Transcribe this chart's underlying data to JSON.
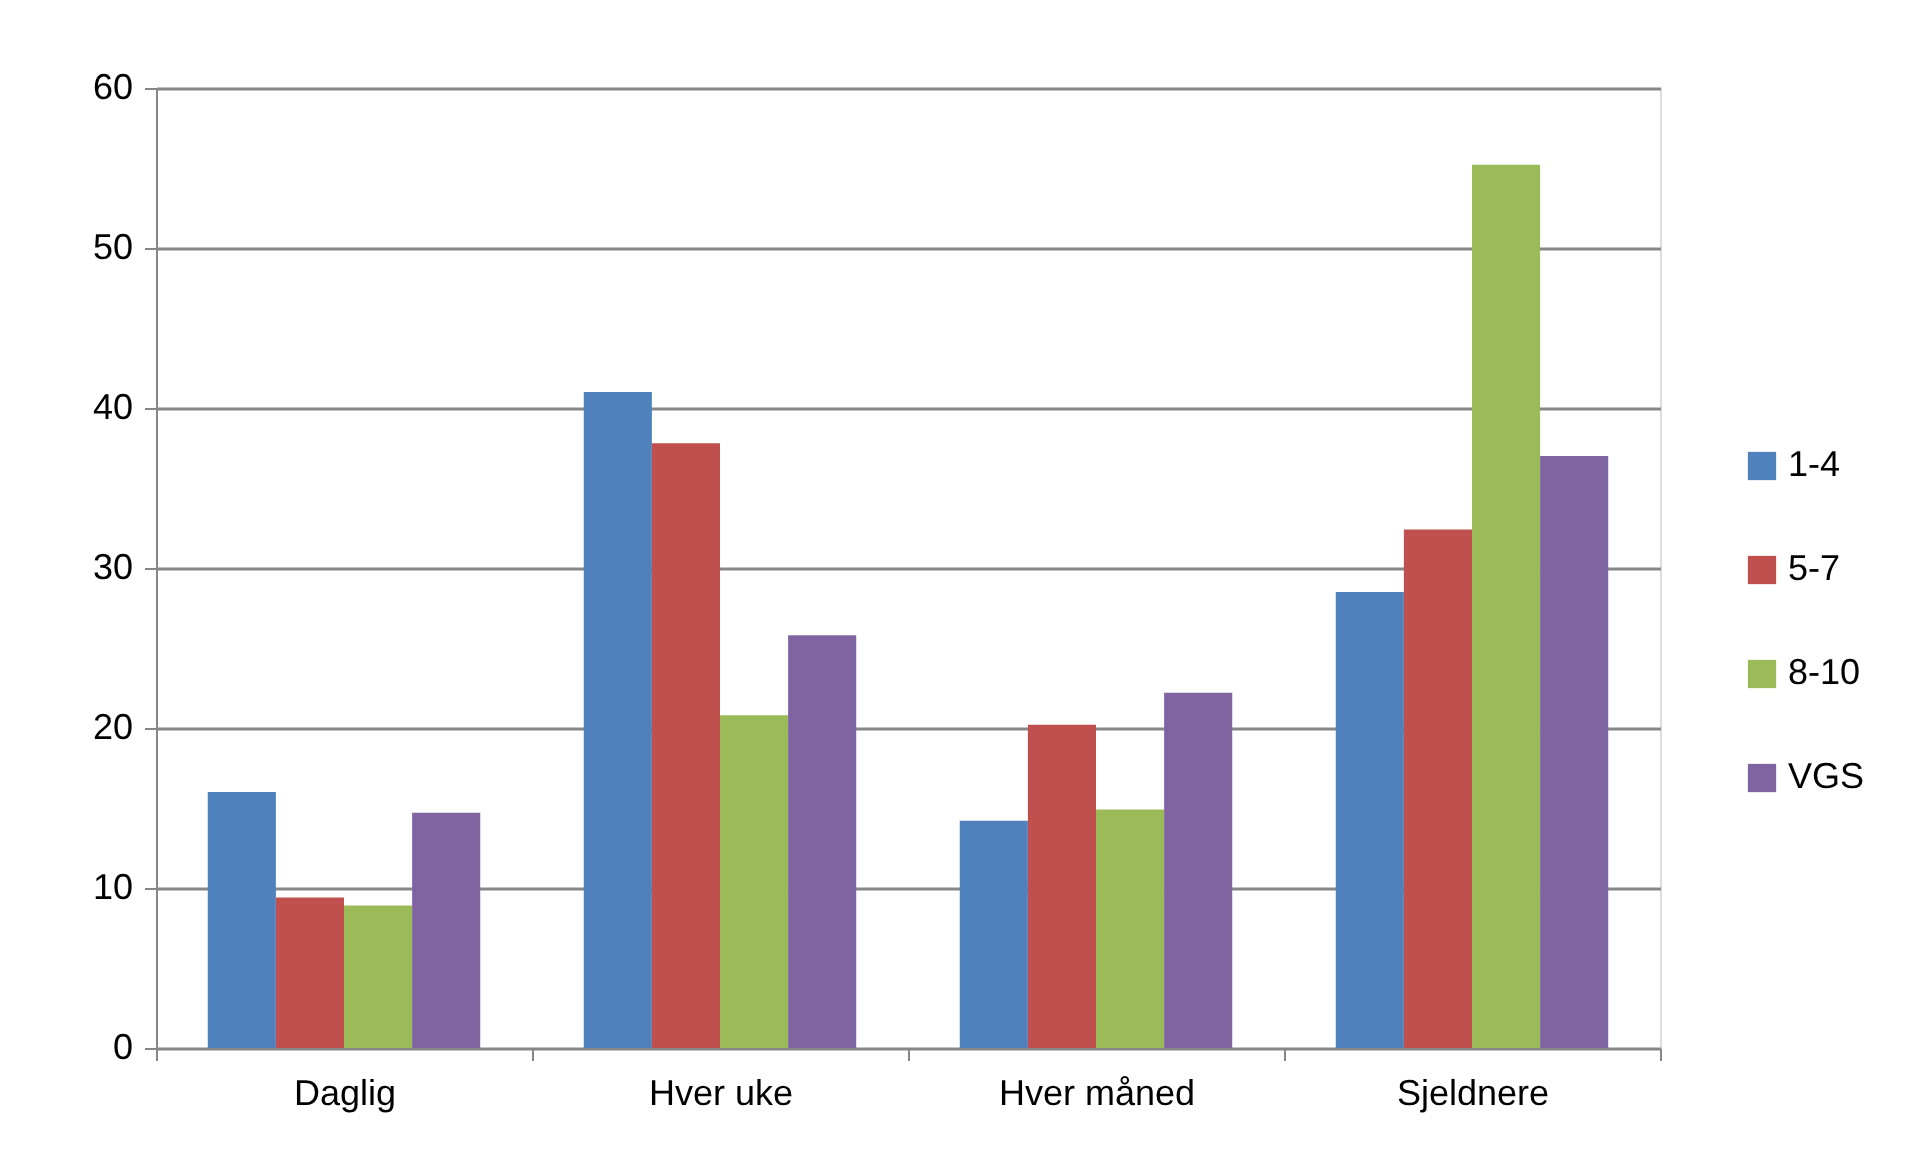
{
  "chart_data": {
    "type": "bar",
    "categories": [
      "Daglig",
      "Hver uke",
      "Hver måned",
      "Sjeldnere"
    ],
    "series": [
      {
        "name": "1-4",
        "color": "#4f81bd",
        "values": [
          16.0,
          41.0,
          14.2,
          28.5
        ]
      },
      {
        "name": "5-7",
        "color": "#c0504d",
        "values": [
          9.4,
          37.8,
          20.2,
          32.4
        ]
      },
      {
        "name": "8-10",
        "color": "#9bbb59",
        "values": [
          8.9,
          20.8,
          14.9,
          55.2
        ]
      },
      {
        "name": "VGS",
        "color": "#8064a2",
        "values": [
          14.7,
          25.8,
          22.2,
          37.0
        ]
      }
    ],
    "ylim": [
      0,
      60
    ],
    "yticks": [
      0,
      10,
      20,
      30,
      40,
      50,
      60
    ],
    "grid": "y",
    "legend": "right"
  }
}
